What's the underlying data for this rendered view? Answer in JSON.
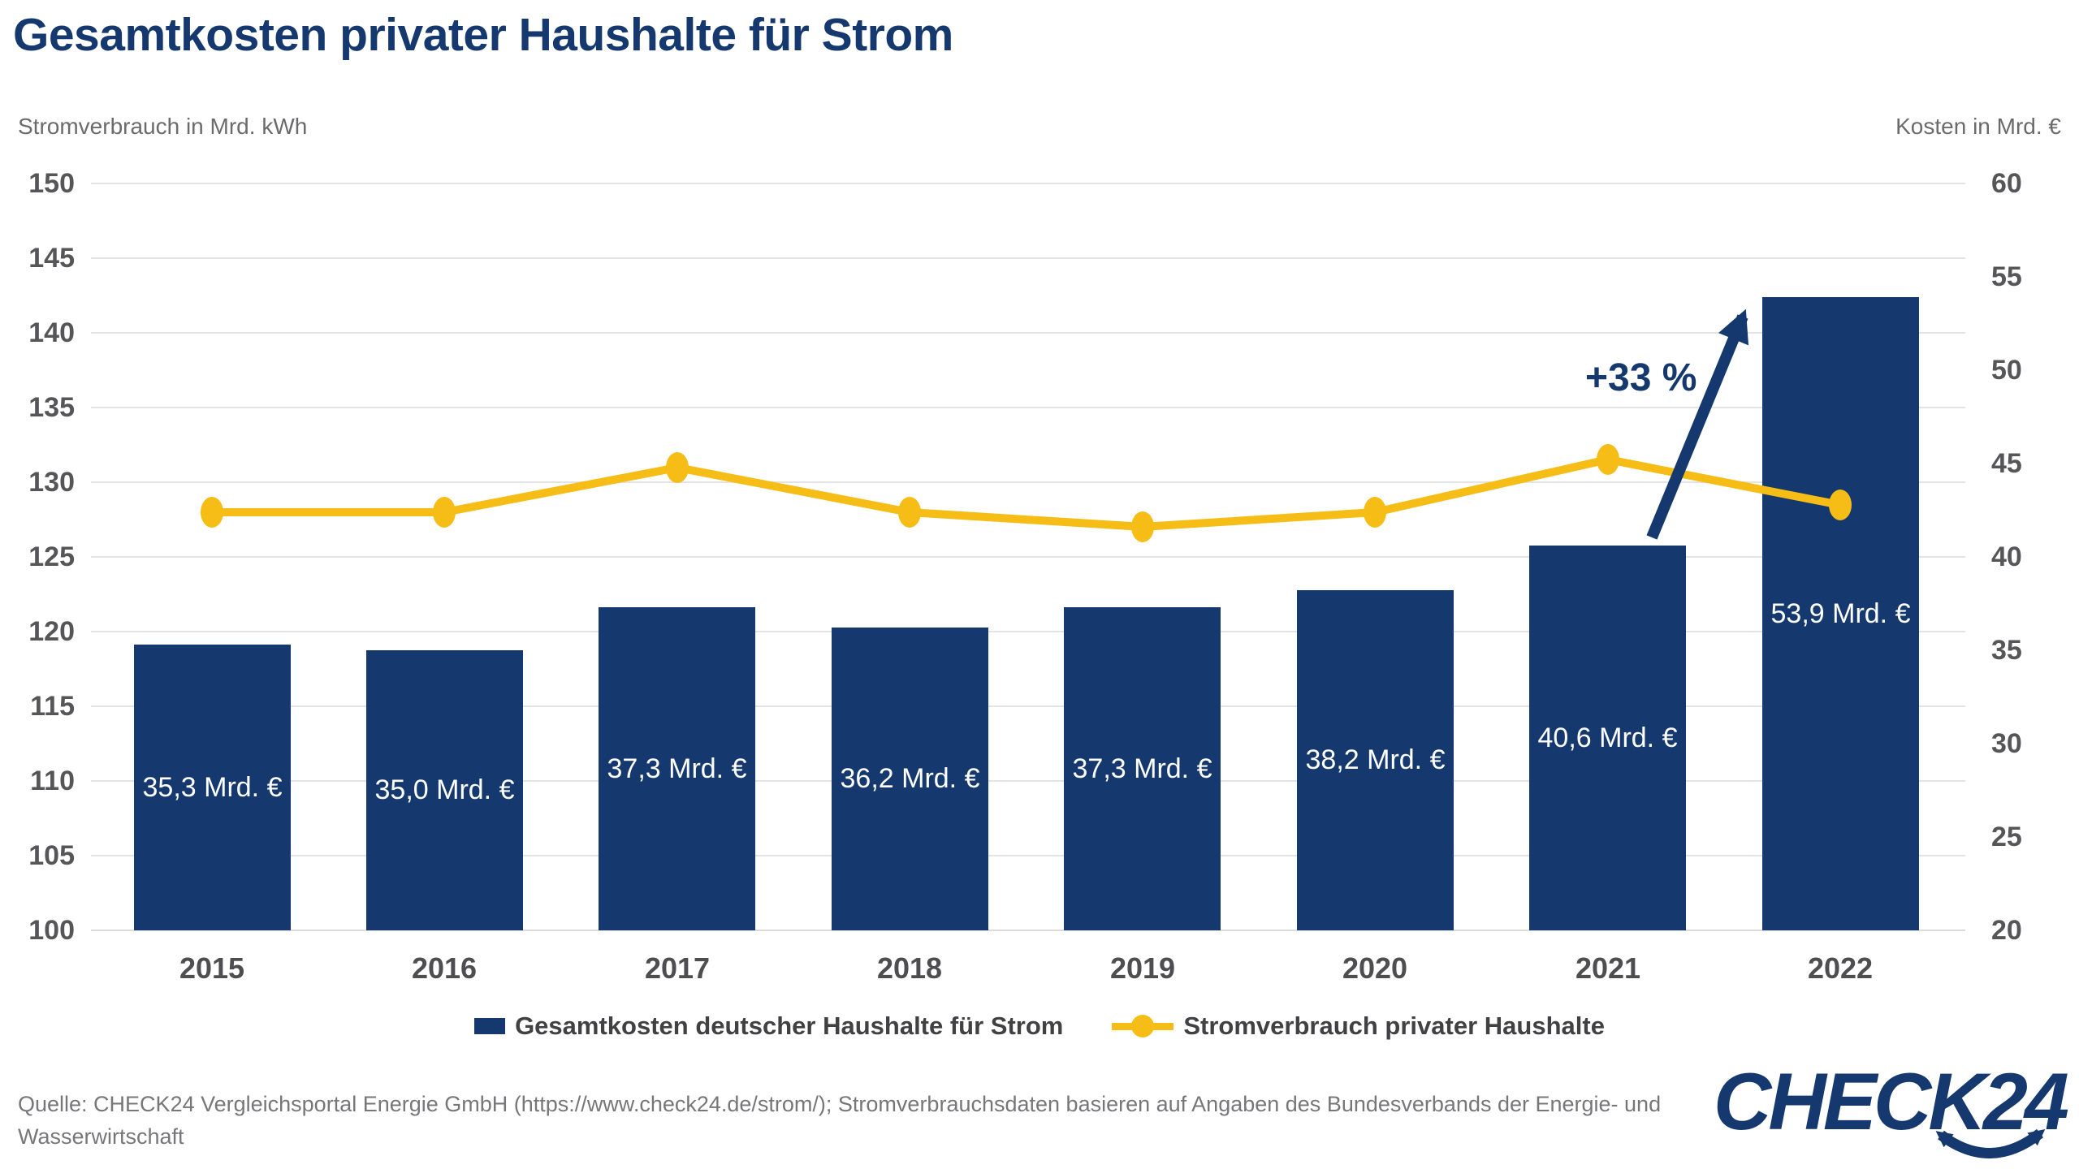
{
  "title": "Gesamtkosten privater Haushalte für Strom",
  "axis_caption_left": "Stromverbrauch in Mrd. kWh",
  "axis_caption_right": "Kosten in Mrd. €",
  "annotation": "+33 %",
  "legend": {
    "bars_label": "Gesamtkosten deutscher Haushalte für Strom",
    "line_label": "Stromverbrauch privater Haushalte"
  },
  "source_line1": "Quelle: CHECK24 Vergleichsportal Energie GmbH (https://www.check24.de/strom/); Stromverbrauchsdaten basieren auf Angaben des Bundesverbands der Energie- und",
  "source_line2": "Wasserwirtschaft",
  "logo_text": "CHECK24",
  "colors": {
    "navy": "#15396E",
    "yellow": "#F6BD16",
    "grid": "#E3E3E3",
    "tick_text": "#565658",
    "caption_text": "#6B6B6D",
    "source_text": "#77777A",
    "bar_label_text": "#FFFFFF"
  },
  "chart_data": {
    "type": "bar",
    "subtype": "bar+line dual axis",
    "categories": [
      "2015",
      "2016",
      "2017",
      "2018",
      "2019",
      "2020",
      "2021",
      "2022"
    ],
    "series": [
      {
        "name": "Gesamtkosten deutscher Haushalte für Strom",
        "type": "bar",
        "axis": "right",
        "unit": "Mrd. €",
        "values": [
          35.3,
          35.0,
          37.3,
          36.2,
          37.3,
          38.2,
          40.6,
          53.9
        ],
        "labels": [
          "35,3 Mrd. €",
          "35,0 Mrd. €",
          "37,3 Mrd. €",
          "36,2 Mrd. €",
          "37,3 Mrd. €",
          "38,2 Mrd. €",
          "40,6 Mrd. €",
          "53,9 Mrd. €"
        ]
      },
      {
        "name": "Stromverbrauch privater Haushalte",
        "type": "line",
        "axis": "left",
        "unit": "Mrd. kWh",
        "values": [
          128,
          128,
          131,
          128,
          127,
          128,
          131.5,
          128.5
        ]
      }
    ],
    "left_axis": {
      "label": "Stromverbrauch in Mrd. kWh",
      "min": 100,
      "max": 150,
      "step": 5
    },
    "right_axis": {
      "label": "Kosten in Mrd. €",
      "min": 20,
      "max": 60,
      "step": 5
    },
    "grid": "horizontal, aligned to left axis",
    "legend_position": "bottom center",
    "annotation": {
      "text": "+33 %",
      "meaning": "increase of costs from 2021 to 2022"
    }
  }
}
